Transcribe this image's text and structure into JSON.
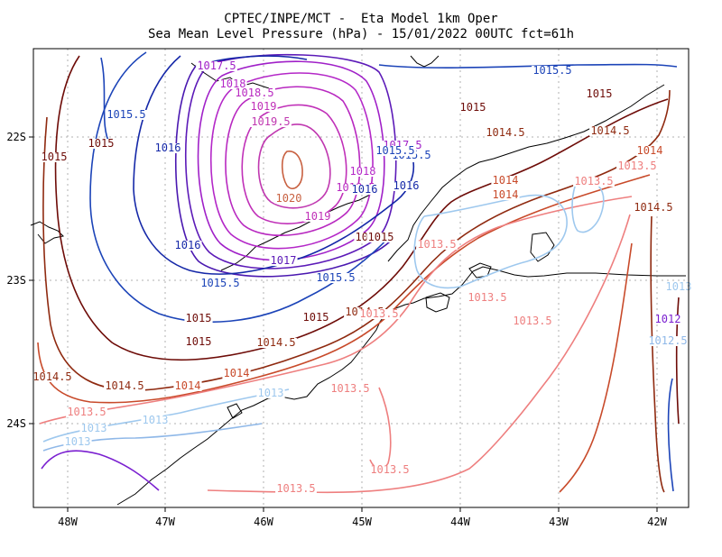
{
  "title": {
    "line1": "CPTEC/INPE/MCT -  Eta Model 1km Oper",
    "line2": "Sea Mean Level Pressure (hPa) - 15/01/2022 00UTC fct=61h"
  },
  "axes": {
    "x_ticks": [
      "48W",
      "47W",
      "46W",
      "45W",
      "44W",
      "43W",
      "42W"
    ],
    "y_ticks": [
      "22S",
      "23S",
      "24S"
    ]
  },
  "colors": {
    "1012": "#7a1fd0",
    "1012.5": "#8fb8e8",
    "1013": "#9ec8ee",
    "1013.5": "#ee7f7f",
    "1014": "#c84a2a",
    "1014.5": "#8f2a10",
    "1015": "#6e0c08",
    "1015.5": "#1c44b8",
    "1016": "#1528a8",
    "1016.5": "#4a18b0",
    "1017": "#5c1ab8",
    "1017.5": "#a020c8",
    "1018": "#b428c8",
    "1018.5": "#b828c0",
    "1019": "#c030b8",
    "1019.5": "#c038b0",
    "1020": "#c86040",
    "grid": "#b0b0b0",
    "coast": "#000000"
  },
  "contour_labels": [
    {
      "text": "1017.5",
      "key": "1017.5"
    },
    {
      "text": "1018",
      "key": "1018"
    },
    {
      "text": "1018.5",
      "key": "1018.5"
    },
    {
      "text": "1019",
      "key": "1019"
    },
    {
      "text": "1019.5",
      "key": "1019.5"
    },
    {
      "text": "1020",
      "key": "1020"
    },
    {
      "text": "1019",
      "key": "1019"
    },
    {
      "text": "1018.5",
      "key": "1018.5"
    },
    {
      "text": "1018",
      "key": "1018"
    },
    {
      "text": "1017.5",
      "key": "1017.5"
    },
    {
      "text": "1017",
      "key": "1017"
    },
    {
      "text": "1016",
      "key": "1016"
    },
    {
      "text": "1015.5",
      "key": "1015.5"
    },
    {
      "text": "1015.5",
      "key": "1015.5"
    },
    {
      "text": "1015.5",
      "key": "1015.5"
    },
    {
      "text": "1015.5",
      "key": "1015.5"
    },
    {
      "text": "1015.5",
      "key": "1015.5"
    },
    {
      "text": "1015.5",
      "key": "1015.5"
    },
    {
      "text": "1016",
      "key": "1016"
    },
    {
      "text": "1016",
      "key": "1016"
    },
    {
      "text": "1016",
      "key": "1016"
    },
    {
      "text": "1015",
      "key": "1015"
    },
    {
      "text": "1015",
      "key": "1015"
    },
    {
      "text": "1015",
      "key": "1015"
    },
    {
      "text": "1015",
      "key": "1015"
    },
    {
      "text": "1015",
      "key": "1015"
    },
    {
      "text": "1015",
      "key": "1015"
    },
    {
      "text": "1015",
      "key": "1015"
    },
    {
      "text": "1015",
      "key": "1015"
    },
    {
      "text": "1014.5",
      "key": "1014.5"
    },
    {
      "text": "1014.5",
      "key": "1014.5"
    },
    {
      "text": "1014.5",
      "key": "1014.5"
    },
    {
      "text": "1014.5",
      "key": "1014.5"
    },
    {
      "text": "1014.5",
      "key": "1014.5"
    },
    {
      "text": "1014.5",
      "key": "1014.5"
    },
    {
      "text": "1014.5",
      "key": "1014.5"
    },
    {
      "text": "1014",
      "key": "1014"
    },
    {
      "text": "1014",
      "key": "1014"
    },
    {
      "text": "1014",
      "key": "1014"
    },
    {
      "text": "1014",
      "key": "1014"
    },
    {
      "text": "1014",
      "key": "1014"
    },
    {
      "text": "1013.5",
      "key": "1013.5"
    },
    {
      "text": "1013.5",
      "key": "1013.5"
    },
    {
      "text": "1013.5",
      "key": "1013.5"
    },
    {
      "text": "1013.5",
      "key": "1013.5"
    },
    {
      "text": "1013.5",
      "key": "1013.5"
    },
    {
      "text": "1013.5",
      "key": "1013.5"
    },
    {
      "text": "1013.5",
      "key": "1013.5"
    },
    {
      "text": "1013.5",
      "key": "1013.5"
    },
    {
      "text": "1013.5",
      "key": "1013.5"
    },
    {
      "text": "1013.5",
      "key": "1013.5"
    },
    {
      "text": "1013",
      "key": "1013"
    },
    {
      "text": "1013",
      "key": "1013"
    },
    {
      "text": "1013",
      "key": "1013"
    },
    {
      "text": "1013",
      "key": "1013"
    },
    {
      "text": "1013",
      "key": "1013"
    },
    {
      "text": "1012.5",
      "key": "1012.5"
    },
    {
      "text": "1012",
      "key": "1012"
    },
    {
      "text": "1015",
      "key": "1015"
    },
    {
      "text": "1015",
      "key": "1015"
    },
    {
      "text": "1015.5",
      "key": "1015.5"
    },
    {
      "text": "1015",
      "key": "1015"
    }
  ]
}
